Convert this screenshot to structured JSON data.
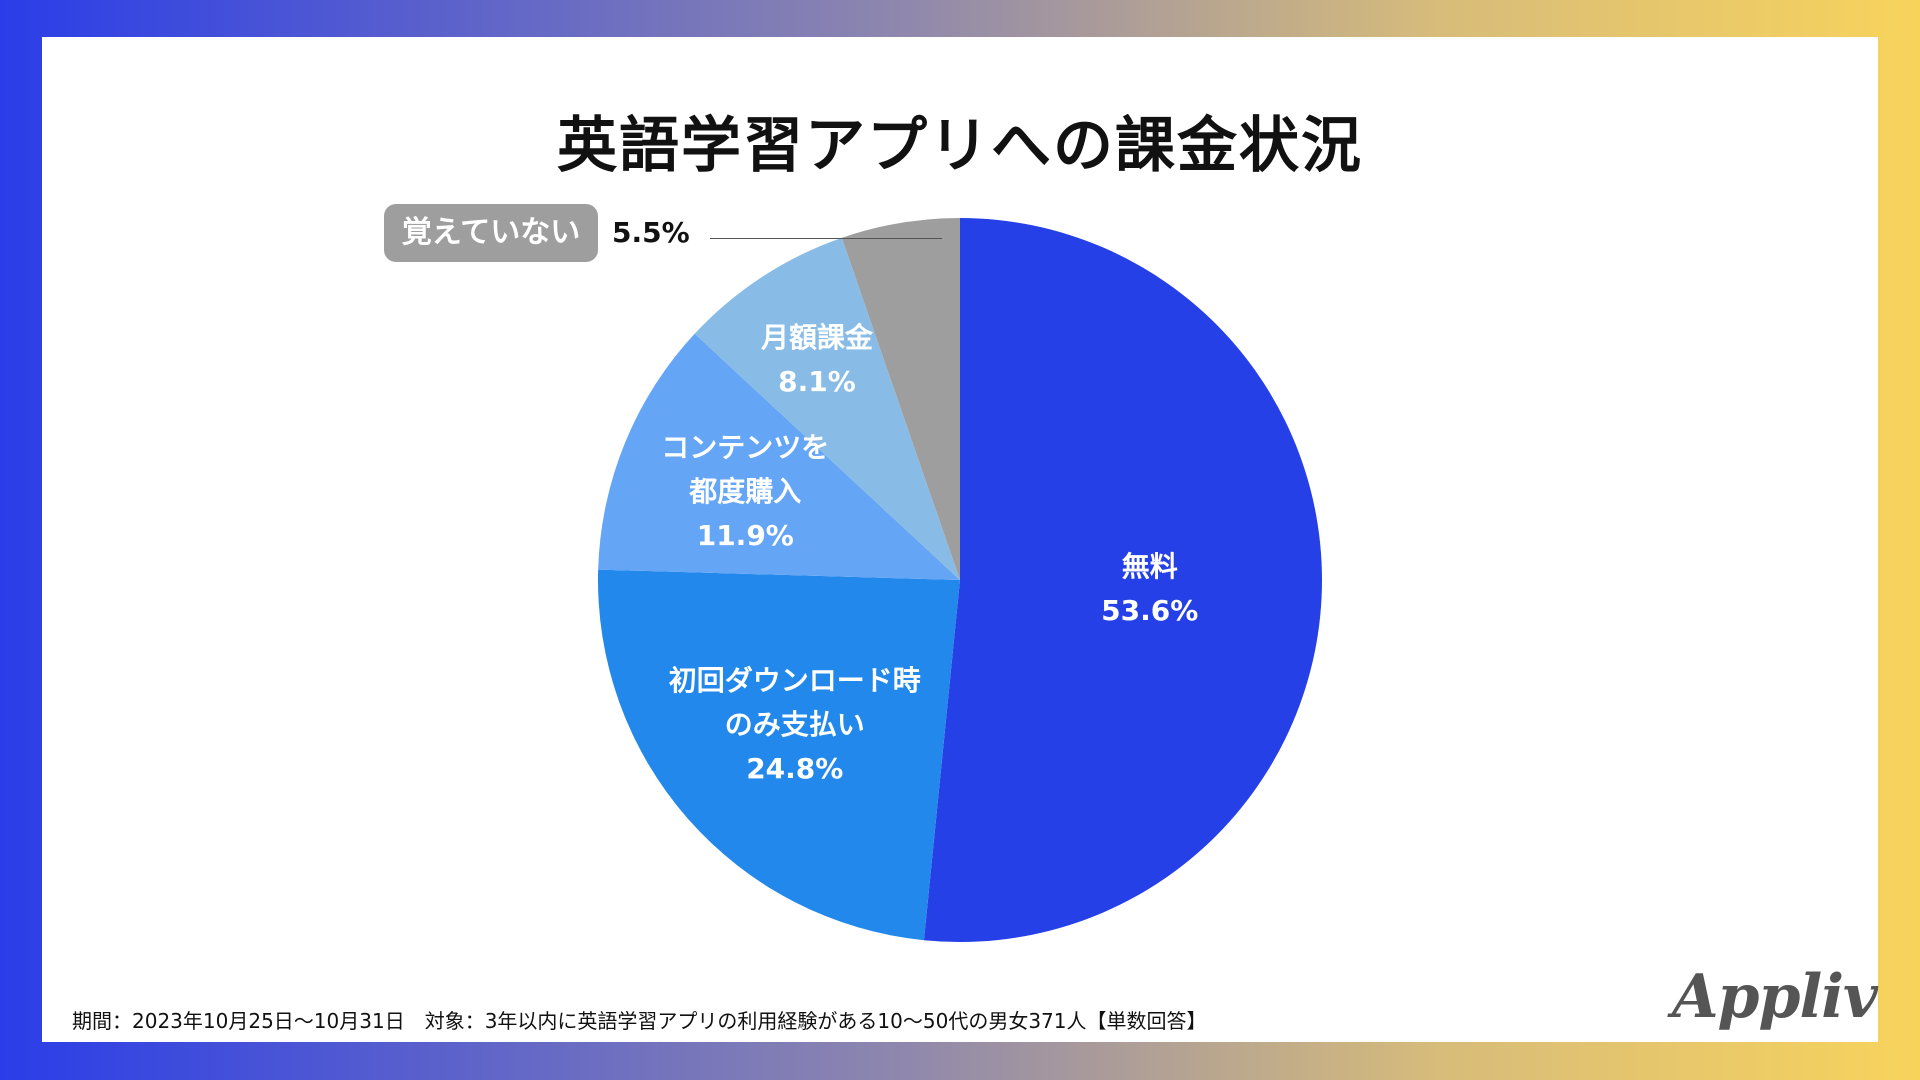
{
  "title": "英語学習アプリへの課金状況",
  "chart_data": {
    "type": "pie",
    "title": "英語学習アプリへの課金状況",
    "start": "12 o'clock",
    "direction": "clockwise",
    "slices": [
      {
        "name": "無料",
        "lines": [
          "無料"
        ],
        "value": 53.6,
        "label": "53.6%",
        "color": "#2640e8"
      },
      {
        "name": "初回ダウンロード時のみ支払い",
        "lines": [
          "初回ダウンロード時",
          "のみ支払い"
        ],
        "value": 24.8,
        "label": "24.8%",
        "color": "#2388ec"
      },
      {
        "name": "コンテンツを都度購入",
        "lines": [
          "コンテンツを",
          "都度購入"
        ],
        "value": 11.9,
        "label": "11.9%",
        "color": "#64a5f6"
      },
      {
        "name": "月額課金",
        "lines": [
          "月額課金"
        ],
        "value": 8.1,
        "label": "8.1%",
        "color": "#88bce6"
      },
      {
        "name": "覚えていない",
        "lines": [
          "覚えていない"
        ],
        "value": 5.5,
        "label": "5.5%",
        "color": "#9e9e9e"
      }
    ]
  },
  "footnote": "期間：2023年10月25日〜10月31日　対象：3年以内に英語学習アプリの利用経験がある10〜50代の男女371人【単数回答】",
  "logo": "Appliv"
}
